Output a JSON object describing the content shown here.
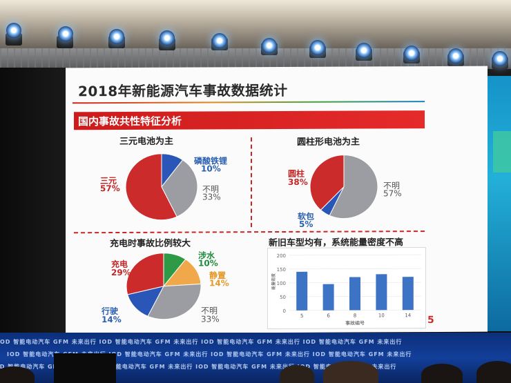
{
  "slide": {
    "title": "2018年新能源汽车事故数据统计",
    "section": "国内事故共性特征分析",
    "page_number": "5"
  },
  "charts": {
    "chemistry": {
      "title": "三元电池为主",
      "slices": [
        {
          "name": "三元",
          "pct": "57%",
          "value": 57,
          "color": "#cc2b2b"
        },
        {
          "name": "磷酸铁锂",
          "pct": "10%",
          "value": 10,
          "color": "#2a56b8"
        },
        {
          "name": "不明",
          "pct": "33%",
          "value": 33,
          "color": "#9c9ca3"
        }
      ]
    },
    "format": {
      "title": "圆柱形电池为主",
      "slices": [
        {
          "name": "圆柱",
          "pct": "38%",
          "value": 38,
          "color": "#cc2b2b"
        },
        {
          "name": "软包",
          "pct": "5%",
          "value": 5,
          "color": "#2a56b8"
        },
        {
          "name": "不明",
          "pct": "57%",
          "value": 57,
          "color": "#9c9ca3"
        }
      ]
    },
    "state": {
      "title": "充电时事故比例较大",
      "slices": [
        {
          "name": "充电",
          "pct": "29%",
          "value": 29,
          "color": "#cc2b2b"
        },
        {
          "name": "涉水",
          "pct": "10%",
          "value": 10,
          "color": "#2f9a45"
        },
        {
          "name": "静置",
          "pct": "14%",
          "value": 14,
          "color": "#f0a84a"
        },
        {
          "name": "不明",
          "pct": "33%",
          "value": 33,
          "color": "#9c9ca3"
        },
        {
          "name": "行驶",
          "pct": "14%",
          "value": 14,
          "color": "#2a56b8"
        }
      ]
    },
    "density": {
      "title": "新旧车型均有，系统能量密度不高",
      "ylabel": "能量密度",
      "xlabel": "事故编号",
      "yticks": [
        "200",
        "150",
        "100",
        "50",
        "0"
      ],
      "ylim": [
        0,
        200
      ],
      "categories": [
        "5",
        "6",
        "8",
        "10",
        "14"
      ],
      "values": [
        140,
        95,
        120,
        130,
        120
      ],
      "color": "#3d73c4"
    }
  },
  "chart_data": [
    {
      "type": "pie",
      "title": "三元电池为主",
      "labels": [
        "三元",
        "磷酸铁锂",
        "不明"
      ],
      "values": [
        57,
        10,
        33
      ]
    },
    {
      "type": "pie",
      "title": "圆柱形电池为主",
      "labels": [
        "圆柱",
        "软包",
        "不明"
      ],
      "values": [
        38,
        5,
        57
      ]
    },
    {
      "type": "pie",
      "title": "充电时事故比例较大",
      "labels": [
        "充电",
        "涉水",
        "静置",
        "不明",
        "行驶"
      ],
      "values": [
        29,
        10,
        14,
        33,
        14
      ]
    },
    {
      "type": "bar",
      "title": "新旧车型均有，系统能量密度不高",
      "categories": [
        "5",
        "6",
        "8",
        "10",
        "14"
      ],
      "values": [
        140,
        95,
        120,
        130,
        120
      ],
      "xlabel": "事故编号",
      "ylabel": "能量密度",
      "ylim": [
        0,
        200
      ]
    }
  ],
  "banner": {
    "row_text": "IOD 智能电动汽车 GFM 未来出行 IOD 智能电动汽车 GFM 未来出行 IOD 智能电动汽车 GFM 未来出行 IOD 智能电动汽车 GFM 未来出行"
  }
}
